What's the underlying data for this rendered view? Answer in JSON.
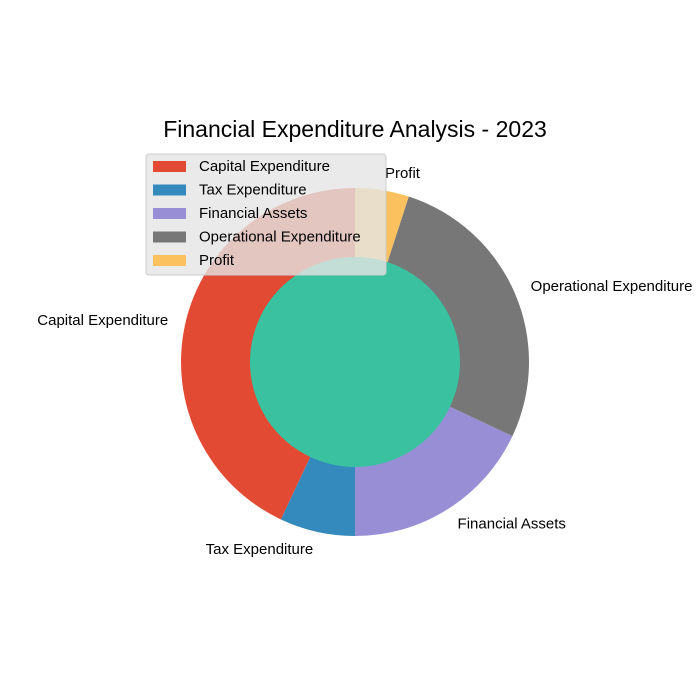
{
  "chart_data": {
    "type": "pie",
    "title": "Financial Expenditure Analysis - 2023",
    "categories": [
      "Capital Expenditure",
      "Tax Expenditure",
      "Financial Assets",
      "Operational Expenditure",
      "Profit"
    ],
    "values": [
      43,
      7,
      18,
      27,
      5
    ],
    "colors": [
      "#E24A33",
      "#348ABD",
      "#988ED5",
      "#777777",
      "#FBC15E"
    ],
    "center_color": "#3AC1A0",
    "legend_position": "top-left",
    "donut": true
  }
}
